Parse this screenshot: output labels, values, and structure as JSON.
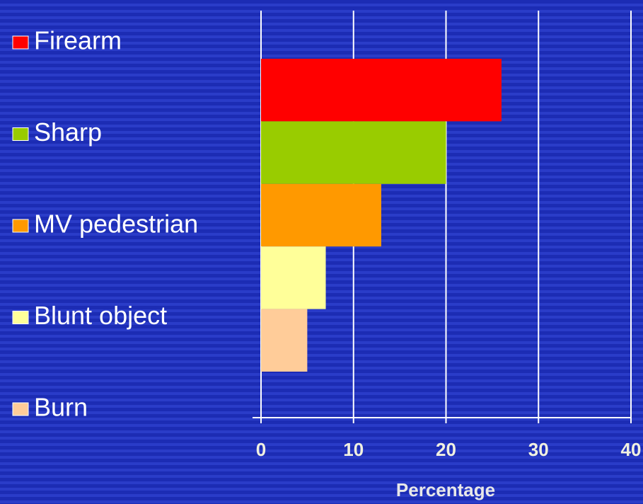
{
  "chart_data": {
    "type": "bar",
    "orientation": "horizontal",
    "categories": [
      null
    ],
    "series": [
      {
        "name": "Firearm",
        "color": "#ff0000",
        "values": [
          26
        ]
      },
      {
        "name": "Sharp",
        "color": "#99cc00",
        "values": [
          20
        ]
      },
      {
        "name": "MV pedestrian",
        "color": "#ff9900",
        "values": [
          13
        ]
      },
      {
        "name": "Blunt object",
        "color": "#ffff99",
        "values": [
          7
        ]
      },
      {
        "name": "Burn",
        "color": "#ffcc99",
        "values": [
          5
        ]
      }
    ],
    "xlabel": "Percentage",
    "xlim": [
      0,
      40
    ],
    "xticks": [
      0,
      10,
      20,
      30,
      40
    ],
    "grid": true,
    "legend": "left"
  }
}
